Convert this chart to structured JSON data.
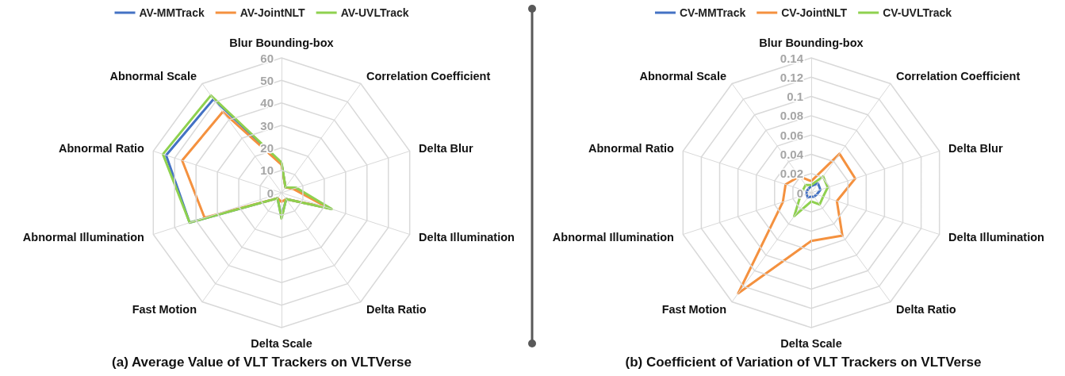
{
  "chart_data": [
    {
      "type": "radar",
      "legend": "top",
      "categories": [
        "Blur Bounding-box",
        "Correlation Coefficient",
        "Delta Blur",
        "Delta Illumination",
        "Delta Ratio",
        "Delta Scale",
        "Fast Motion",
        "Abnormal Illumination",
        "Abnormal Ratio",
        "Abnormal Scale"
      ],
      "ylim": [
        0,
        60
      ],
      "yticks": [
        0,
        10,
        20,
        30,
        40,
        50,
        60
      ],
      "series": [
        {
          "name": "AV-MMTrack",
          "color": "#4472c4",
          "values": [
            13,
            3,
            6.5,
            23,
            3.5,
            11,
            3,
            43,
            54,
            51.5
          ]
        },
        {
          "name": "AV-JointNLT",
          "color": "#f4913f",
          "values": [
            12.5,
            3,
            5.5,
            22,
            3.5,
            4,
            3,
            36,
            46.5,
            44.5
          ]
        },
        {
          "name": "AV-UVLTrack",
          "color": "#8fd14f",
          "values": [
            13.5,
            3,
            7,
            23.5,
            3.5,
            11.5,
            3,
            43,
            55.5,
            53.5
          ]
        }
      ],
      "annotations": [
        "(a) Average Value of VLT Trackers on VLTVerse"
      ]
    },
    {
      "type": "radar",
      "legend": "top",
      "categories": [
        "Blur Bounding-box",
        "Correlation Coefficient",
        "Delta Blur",
        "Delta Illumination",
        "Delta Ratio",
        "Delta Scale",
        "Fast Motion",
        "Abnormal Illumination",
        "Abnormal Ratio",
        "Abnormal Scale"
      ],
      "ylim": [
        0,
        0.14
      ],
      "yticks": [
        0,
        0.02,
        0.04,
        0.06,
        0.08,
        0.1,
        0.12,
        0.14
      ],
      "series": [
        {
          "name": "CV-MMTrack",
          "color": "#4472c4",
          "values": [
            0.007,
            0.012,
            0.01,
            0.006,
            0.005,
            0.004,
            0.006,
            0.005,
            0.005,
            0.005
          ]
        },
        {
          "name": "CV-JointNLT",
          "color": "#f4913f",
          "values": [
            0.012,
            0.05,
            0.048,
            0.028,
            0.055,
            0.05,
            0.129,
            0.031,
            0.028,
            0.021
          ]
        },
        {
          "name": "CV-UVLTrack",
          "color": "#8fd14f",
          "values": [
            0.008,
            0.021,
            0.018,
            0.013,
            0.015,
            0.009,
            0.03,
            0.012,
            0.009,
            0.01
          ]
        }
      ],
      "annotations": [
        "(b) Coefficient of Variation of VLT Trackers on VLTVerse"
      ]
    }
  ]
}
